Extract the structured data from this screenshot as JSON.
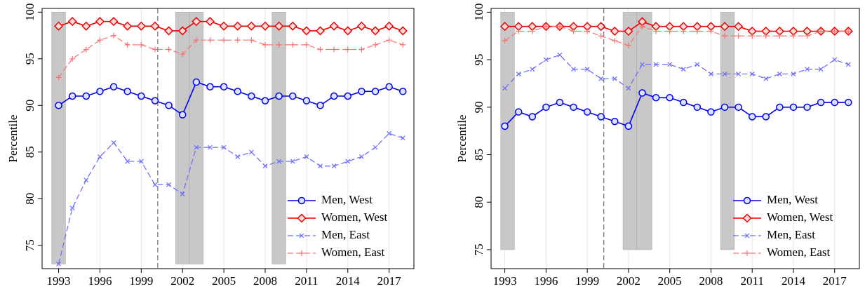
{
  "chart_data": [
    {
      "type": "line",
      "ylabel": "Percentile",
      "x": [
        1993,
        1994,
        1995,
        1996,
        1997,
        1998,
        1999,
        2000,
        2001,
        2002,
        2003,
        2004,
        2005,
        2006,
        2007,
        2008,
        2009,
        2010,
        2011,
        2012,
        2013,
        2014,
        2015,
        2016,
        2017,
        2018
      ],
      "xlim": [
        1991.8,
        2018.8
      ],
      "ylim": [
        72.5,
        100.4
      ],
      "xticks": [
        1993,
        1996,
        1999,
        2002,
        2005,
        2008,
        2011,
        2014,
        2017
      ],
      "yticks": [
        75,
        80,
        85,
        90,
        95,
        100
      ],
      "grid": "x",
      "legend": "lower right",
      "shaded": [
        [
          1992.5,
          1993.5
        ],
        [
          2001.5,
          2002.5
        ],
        [
          2002.5,
          2003.5
        ],
        [
          2008.5,
          2009.5
        ]
      ],
      "shade_ylim": [
        73,
        100
      ],
      "shade_color": "#c8c8c8",
      "vline": 2000.2,
      "series": [
        {
          "name": "Men, West",
          "color": "#0000ee",
          "style": "solid",
          "marker": "circle",
          "values": [
            90,
            91,
            91,
            91.5,
            92,
            91.5,
            91,
            90.5,
            90,
            89,
            92.5,
            92,
            92,
            91.5,
            91,
            90.5,
            91,
            91,
            90.5,
            90,
            91,
            91,
            91.5,
            91.5,
            92,
            91.5
          ]
        },
        {
          "name": "Women, West",
          "color": "#ee0000",
          "style": "solid",
          "marker": "diamond",
          "values": [
            98.5,
            99,
            98.5,
            99,
            99,
            98.5,
            98.5,
            98.5,
            98,
            98,
            99,
            99,
            98.5,
            98.5,
            98.5,
            98.5,
            98.5,
            98.5,
            98,
            98,
            98.5,
            98,
            98.5,
            98,
            98.5,
            98
          ]
        },
        {
          "name": "Men, East",
          "color": "#6a6aff",
          "style": "dashed",
          "marker": "x",
          "values": [
            73,
            79,
            82,
            84.5,
            86,
            84,
            84,
            81.5,
            81.5,
            80.5,
            85.5,
            85.5,
            85.5,
            84.5,
            85,
            83.5,
            84,
            84,
            84.5,
            83.5,
            83.5,
            84,
            84.5,
            85.5,
            87,
            86.5
          ]
        },
        {
          "name": "Women, East",
          "color": "#ff7070",
          "style": "dashed",
          "marker": "plus",
          "values": [
            93,
            95,
            96,
            97,
            97.5,
            96.5,
            96.5,
            96,
            96,
            95.5,
            97,
            97,
            97,
            97,
            97,
            96.5,
            96.5,
            96.5,
            96.5,
            96,
            96,
            96,
            96,
            96.5,
            97,
            96.5
          ]
        }
      ]
    },
    {
      "type": "line",
      "ylabel": "Percentile",
      "x": [
        1993,
        1994,
        1995,
        1996,
        1997,
        1998,
        1999,
        2000,
        2001,
        2002,
        2003,
        2004,
        2005,
        2006,
        2007,
        2008,
        2009,
        2010,
        2011,
        2012,
        2013,
        2014,
        2015,
        2016,
        2017,
        2018
      ],
      "xlim": [
        1992,
        2018.8
      ],
      "ylim": [
        73,
        100.4
      ],
      "xticks": [
        1993,
        1996,
        1999,
        2002,
        2005,
        2008,
        2011,
        2014,
        2017
      ],
      "yticks": [
        75,
        80,
        85,
        90,
        95,
        100
      ],
      "grid": "x",
      "legend": "lower right",
      "shaded": [
        [
          1992.7,
          1993.7
        ],
        [
          2001.6,
          2002.6
        ],
        [
          2002.6,
          2003.7
        ],
        [
          2008.7,
          2009.7
        ]
      ],
      "shade_ylim": [
        75,
        100
      ],
      "shade_color": "#c8c8c8",
      "vline": 2000.2,
      "series": [
        {
          "name": "Men, West",
          "color": "#0000ee",
          "style": "solid",
          "marker": "circle",
          "values": [
            88,
            89.5,
            89,
            90,
            90.5,
            90,
            89.5,
            89,
            88.5,
            88,
            91.5,
            91,
            91,
            90.5,
            90,
            89.5,
            90,
            90,
            89,
            89,
            90,
            90,
            90,
            90.5,
            90.5,
            90.5
          ]
        },
        {
          "name": "Women, West",
          "color": "#ee0000",
          "style": "solid",
          "marker": "diamond",
          "values": [
            98.5,
            98.5,
            98.5,
            98.5,
            98.5,
            98.5,
            98.5,
            98.5,
            98,
            98,
            99,
            98.5,
            98.5,
            98.5,
            98.5,
            98.5,
            98.5,
            98.5,
            98,
            98,
            98,
            98,
            98,
            98,
            98,
            98
          ]
        },
        {
          "name": "Men, East",
          "color": "#6a6aff",
          "style": "dashed",
          "marker": "x",
          "values": [
            92,
            93.5,
            94,
            95,
            95.5,
            94,
            94,
            93,
            93,
            92,
            94.5,
            94.5,
            94.5,
            94,
            94.5,
            93.5,
            93.5,
            93.5,
            93.5,
            93,
            93.5,
            93.5,
            94,
            94,
            95,
            94.5
          ]
        },
        {
          "name": "Women, East",
          "color": "#ff7070",
          "style": "dashed",
          "marker": "plus",
          "values": [
            97,
            98,
            98,
            98.5,
            98.5,
            98,
            98,
            97.5,
            97,
            96.5,
            98.5,
            98,
            98,
            98,
            98,
            98,
            97.5,
            97.5,
            97.5,
            97.5,
            97.5,
            97.5,
            97.5,
            98,
            98,
            98
          ]
        }
      ]
    }
  ]
}
